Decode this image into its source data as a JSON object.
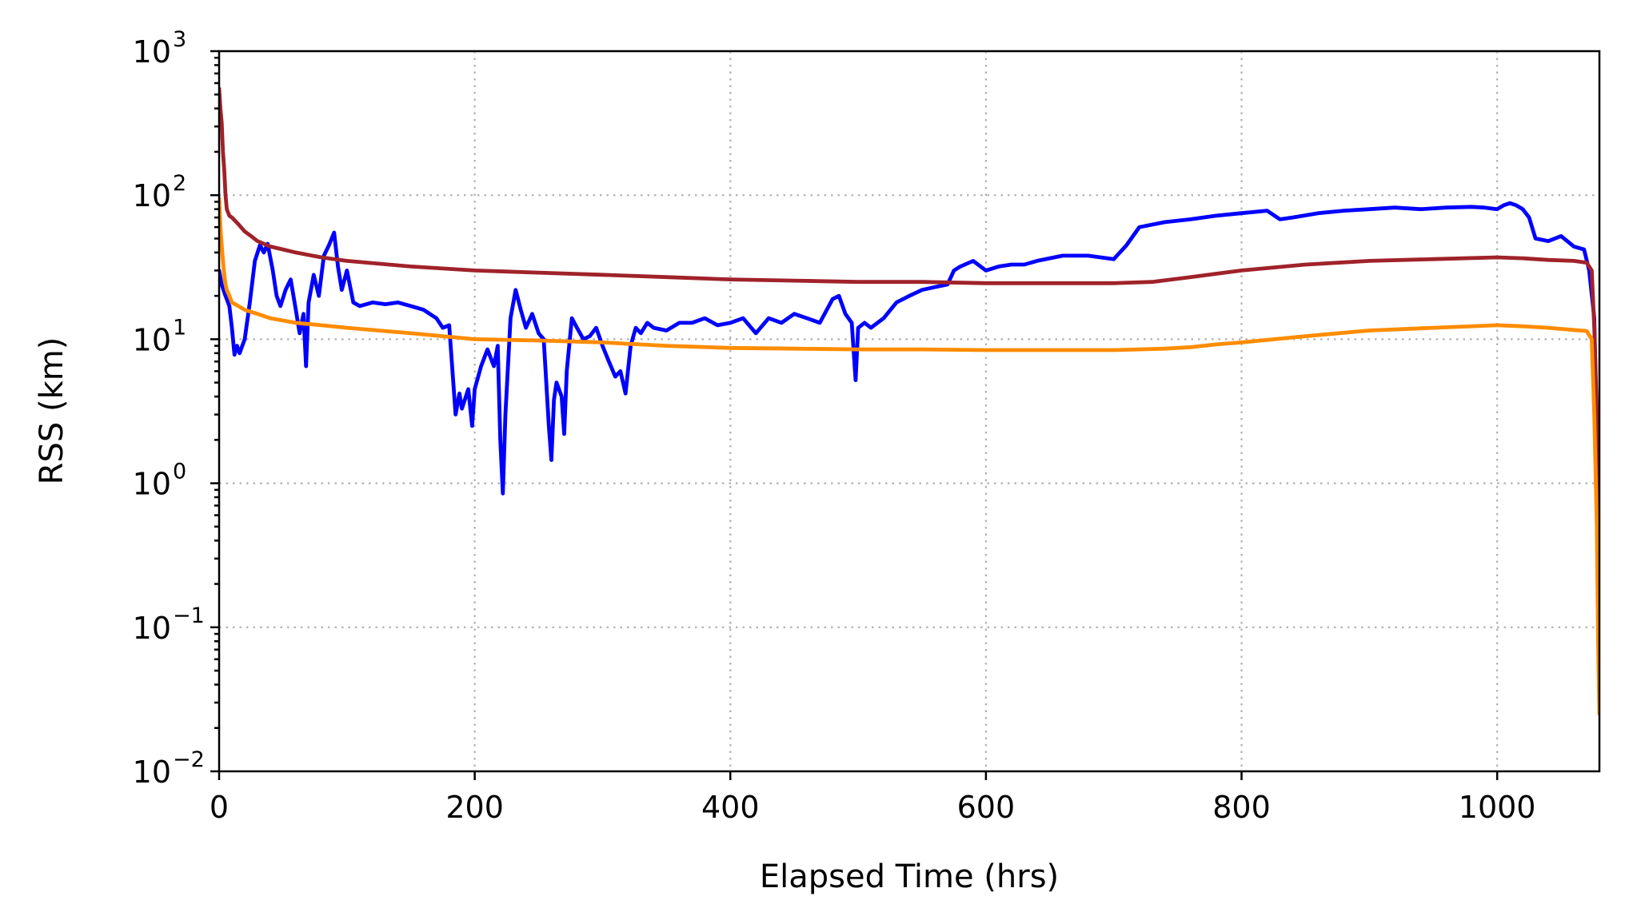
{
  "chart_data": {
    "type": "line",
    "xlabel": "Elapsed Time (hrs)",
    "ylabel": "RSS (km)",
    "y_scale": "log",
    "xlim": [
      0,
      1080
    ],
    "ylim": [
      0.01,
      1000
    ],
    "x_ticks": [
      0,
      200,
      400,
      600,
      800,
      1000
    ],
    "y_ticks": [
      {
        "value": 0.01,
        "base": "10",
        "exp": "−2"
      },
      {
        "value": 0.1,
        "base": "10",
        "exp": "−1"
      },
      {
        "value": 1,
        "base": "10",
        "exp": "0"
      },
      {
        "value": 10,
        "base": "10",
        "exp": "1"
      },
      {
        "value": 100,
        "base": "10",
        "exp": "2"
      },
      {
        "value": 1000,
        "base": "10",
        "exp": "3"
      }
    ],
    "grid": true,
    "series": [
      {
        "color": "#0000ff",
        "x": [
          0,
          2,
          5,
          8,
          10,
          12,
          14,
          16,
          20,
          24,
          28,
          32,
          35,
          38,
          42,
          45,
          48,
          52,
          56,
          60,
          63,
          66,
          68,
          70,
          74,
          78,
          82,
          86,
          90,
          93,
          96,
          100,
          105,
          110,
          120,
          130,
          140,
          150,
          160,
          170,
          175,
          180,
          185,
          188,
          190,
          195,
          198,
          200,
          205,
          210,
          215,
          218,
          220,
          222,
          224,
          228,
          232,
          236,
          240,
          245,
          250,
          254,
          258,
          260,
          262,
          264,
          268,
          270,
          272,
          276,
          280,
          285,
          290,
          295,
          300,
          305,
          310,
          314,
          318,
          322,
          326,
          330,
          335,
          340,
          350,
          360,
          370,
          380,
          390,
          400,
          410,
          420,
          430,
          440,
          450,
          460,
          470,
          480,
          485,
          490,
          495,
          498,
          500,
          505,
          510,
          520,
          530,
          540,
          550,
          560,
          570,
          575,
          580,
          590,
          600,
          610,
          620,
          630,
          640,
          660,
          680,
          700,
          710,
          720,
          740,
          760,
          780,
          800,
          820,
          830,
          840,
          860,
          880,
          900,
          920,
          940,
          960,
          980,
          990,
          1000,
          1005,
          1010,
          1015,
          1020,
          1025,
          1030,
          1040,
          1050,
          1060,
          1068,
          1072,
          1076,
          1078,
          1080
        ],
        "values": [
          30,
          24,
          20,
          17,
          12,
          7.8,
          9,
          8,
          10,
          18,
          35,
          45,
          40,
          46,
          30,
          20,
          17,
          22,
          26,
          16,
          11,
          15,
          6.5,
          18,
          28,
          20,
          38,
          45,
          55,
          32,
          22,
          30,
          18,
          17,
          18,
          17.5,
          18,
          17,
          16,
          14,
          12,
          12.5,
          3,
          4.2,
          3.3,
          4.5,
          2.5,
          4.5,
          6.5,
          8.5,
          6.5,
          9,
          2,
          0.85,
          3,
          14,
          22,
          16,
          12,
          15,
          11,
          10,
          2.5,
          1.45,
          3.8,
          5,
          4,
          2.2,
          6,
          14,
          12,
          10,
          10.5,
          12,
          9,
          7,
          5.5,
          6,
          4.2,
          9,
          12,
          11,
          13,
          12,
          11.5,
          13,
          13,
          14,
          12.5,
          13,
          14,
          11,
          14,
          13,
          15,
          14,
          13,
          19,
          20,
          15,
          13,
          5.2,
          12,
          13,
          12,
          14,
          18,
          20,
          22,
          23,
          24,
          30,
          32,
          35,
          30,
          32,
          33,
          33,
          35,
          38,
          38,
          36,
          45,
          60,
          65,
          68,
          72,
          75,
          78,
          68,
          70,
          75,
          78,
          80,
          82,
          80,
          82,
          83,
          82,
          80,
          85,
          88,
          85,
          80,
          70,
          50,
          48,
          52,
          44,
          42,
          30,
          14,
          2,
          0.07
        ]
      },
      {
        "color": "#a0222a",
        "x": [
          0,
          1,
          2,
          3,
          4,
          5,
          6,
          8,
          10,
          15,
          20,
          25,
          30,
          40,
          50,
          60,
          80,
          100,
          150,
          200,
          250,
          300,
          350,
          400,
          450,
          500,
          550,
          600,
          650,
          700,
          730,
          760,
          800,
          850,
          900,
          950,
          1000,
          1020,
          1040,
          1060,
          1070,
          1074,
          1076,
          1078,
          1079,
          1080
        ],
        "values": [
          550,
          400,
          320,
          200,
          150,
          100,
          80,
          72,
          70,
          63,
          56,
          52,
          48,
          44,
          42,
          40,
          37,
          35,
          32,
          30,
          29,
          28,
          27,
          26,
          25.5,
          25,
          25,
          24.5,
          24.5,
          24.5,
          25,
          27,
          30,
          33,
          35,
          36,
          37,
          36.5,
          35.5,
          35,
          34,
          30,
          12,
          3,
          0.6,
          0.2
        ]
      },
      {
        "color": "#ff8c00",
        "x": [
          0,
          1,
          2,
          3,
          4,
          5,
          6,
          8,
          10,
          15,
          20,
          30,
          40,
          60,
          80,
          100,
          150,
          200,
          250,
          300,
          350,
          400,
          450,
          500,
          550,
          600,
          650,
          700,
          720,
          740,
          760,
          780,
          800,
          850,
          900,
          950,
          1000,
          1020,
          1040,
          1060,
          1070,
          1074,
          1076,
          1078,
          1079,
          1080
        ],
        "values": [
          95,
          60,
          45,
          35,
          28,
          24,
          22,
          20,
          18,
          17,
          16,
          15,
          14,
          13,
          12.5,
          12,
          11,
          10,
          9.8,
          9.5,
          9,
          8.7,
          8.6,
          8.5,
          8.5,
          8.4,
          8.4,
          8.4,
          8.5,
          8.6,
          8.8,
          9.2,
          9.5,
          10.5,
          11.5,
          12,
          12.5,
          12.3,
          12,
          11.6,
          11.4,
          10,
          3,
          0.5,
          0.08,
          0.025
        ]
      }
    ]
  }
}
